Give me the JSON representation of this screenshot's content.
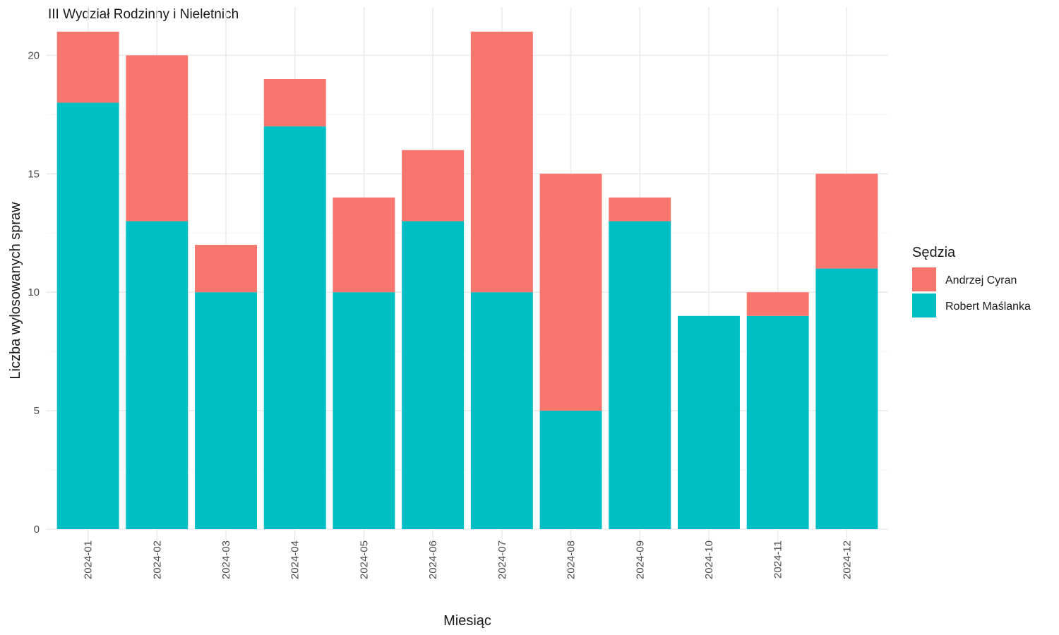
{
  "chart_data": {
    "type": "bar",
    "stacked": true,
    "title": "III Wydział Rodzinny i Nieletnich",
    "xlabel": "Miesiąc",
    "ylabel": "Liczba wylosowanych spraw",
    "categories": [
      "2024-01",
      "2024-02",
      "2024-03",
      "2024-04",
      "2024-05",
      "2024-06",
      "2024-07",
      "2024-08",
      "2024-09",
      "2024-10",
      "2024-11",
      "2024-12"
    ],
    "series": [
      {
        "name": "Robert Maślanka",
        "color": "#00BFC4",
        "values": [
          18,
          13,
          10,
          17,
          10,
          13,
          10,
          5,
          13,
          9,
          9,
          11
        ]
      },
      {
        "name": "Andrzej Cyran",
        "color": "#F8766D",
        "values": [
          3,
          7,
          2,
          2,
          4,
          3,
          11,
          10,
          1,
          0,
          1,
          4
        ]
      }
    ],
    "ylim": [
      0,
      21
    ],
    "yticks": [
      0,
      5,
      10,
      15,
      20
    ],
    "grid": true,
    "legend": {
      "title": "Sędzia",
      "placement": "right",
      "order": [
        "Andrzej Cyran",
        "Robert Maślanka"
      ]
    }
  }
}
